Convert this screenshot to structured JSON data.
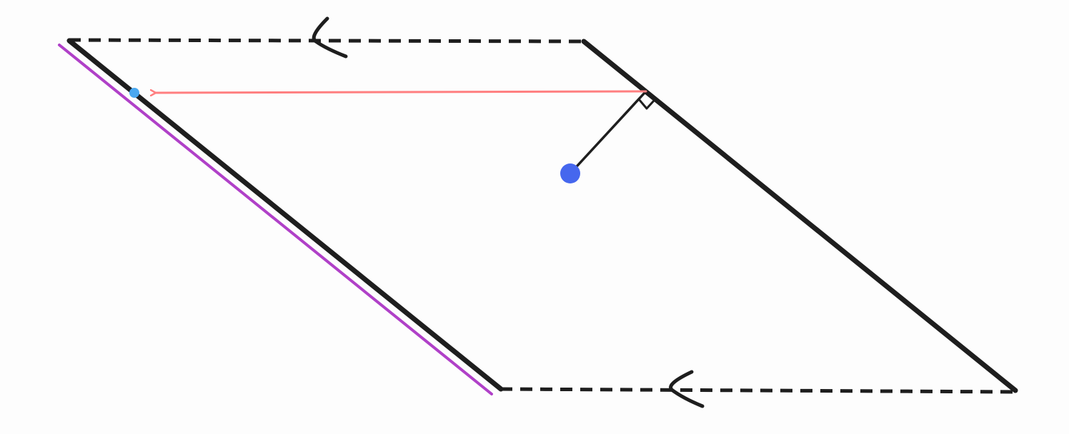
{
  "colors": {
    "background": "#fdfdfd",
    "edge": "#1e1e1e",
    "offset_line": "#b040c8",
    "arrow": "#ff7f80",
    "point": "#4667ee",
    "closest_point": "#4aa8f0"
  }
}
